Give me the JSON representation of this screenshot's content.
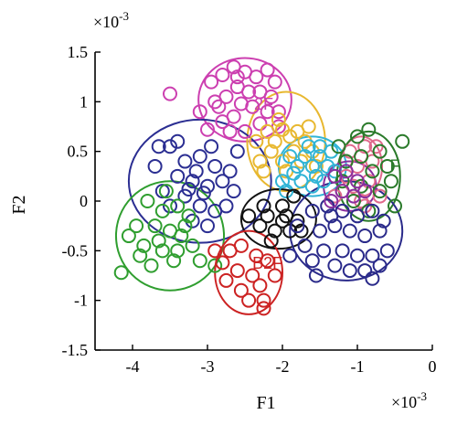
{
  "chart_data": {
    "type": "scatter",
    "xlabel": "F1",
    "ylabel": "F2",
    "x_multiplier_label": "×10",
    "x_multiplier_exp": "-3",
    "y_multiplier_label": "×10",
    "y_multiplier_exp": "-3",
    "xlim": [
      -4.5,
      0
    ],
    "ylim": [
      -1.5,
      1.5
    ],
    "xticks": [
      -4,
      -3,
      -2,
      -1,
      0
    ],
    "xtick_labels": [
      "-4",
      "-3",
      "-2",
      "-1",
      "0"
    ],
    "yticks": [
      1.5,
      1,
      0.5,
      0,
      -0.5,
      -1,
      -1.5
    ],
    "ytick_labels": [
      "1.5",
      "1",
      "0.5",
      "0",
      "-0.5",
      "-1",
      "-1.5"
    ],
    "grid": false,
    "marker": "open-circle",
    "series": [
      {
        "color": "#cc3fb0",
        "center": [
          -2.5,
          1.02
        ],
        "ellipse": {
          "rx": 0.62,
          "ry": 0.42,
          "angle": 0
        },
        "points": [
          [
            -2.95,
            1.2
          ],
          [
            -2.8,
            1.27
          ],
          [
            -2.65,
            1.35
          ],
          [
            -2.5,
            1.3
          ],
          [
            -2.35,
            1.25
          ],
          [
            -2.2,
            1.32
          ],
          [
            -2.1,
            1.2
          ],
          [
            -2.6,
            1.15
          ],
          [
            -2.45,
            1.1
          ],
          [
            -2.3,
            1.1
          ],
          [
            -2.75,
            1.05
          ],
          [
            -2.9,
            1.0
          ],
          [
            -2.55,
            0.98
          ],
          [
            -2.4,
            0.95
          ],
          [
            -2.2,
            0.9
          ],
          [
            -2.65,
            0.85
          ],
          [
            -2.8,
            0.8
          ],
          [
            -2.3,
            0.78
          ],
          [
            -2.05,
            0.75
          ],
          [
            -3.1,
            0.9
          ],
          [
            -3.5,
            1.08
          ],
          [
            -2.5,
            0.7
          ],
          [
            -2.7,
            0.7
          ],
          [
            -2.15,
            1.05
          ],
          [
            -2.05,
            0.9
          ],
          [
            -2.6,
            1.25
          ],
          [
            -2.85,
            0.95
          ],
          [
            -3.0,
            0.72
          ]
        ]
      },
      {
        "color": "#e8b830",
        "center": [
          -1.95,
          0.6
        ],
        "ellipse": {
          "rx": 0.52,
          "ry": 0.5,
          "angle": 0
        },
        "points": [
          [
            -2.2,
            0.7
          ],
          [
            -2.1,
            0.6
          ],
          [
            -2.0,
            0.72
          ],
          [
            -1.9,
            0.65
          ],
          [
            -1.8,
            0.7
          ],
          [
            -1.7,
            0.6
          ],
          [
            -1.85,
            0.5
          ],
          [
            -2.15,
            0.5
          ],
          [
            -2.3,
            0.4
          ],
          [
            -2.0,
            0.4
          ],
          [
            -1.75,
            0.4
          ],
          [
            -1.6,
            0.5
          ],
          [
            -2.35,
            0.6
          ],
          [
            -1.95,
            0.3
          ],
          [
            -1.65,
            0.75
          ],
          [
            -2.25,
            0.3
          ],
          [
            -1.55,
            0.35
          ],
          [
            -2.05,
            0.82
          ]
        ]
      },
      {
        "color": "#30b4d6",
        "center": [
          -1.6,
          0.35
        ],
        "ellipse": {
          "rx": 0.45,
          "ry": 0.3,
          "angle": 0
        },
        "points": [
          [
            -1.9,
            0.45
          ],
          [
            -1.8,
            0.35
          ],
          [
            -1.7,
            0.45
          ],
          [
            -1.6,
            0.35
          ],
          [
            -1.5,
            0.45
          ],
          [
            -1.4,
            0.35
          ],
          [
            -1.55,
            0.25
          ],
          [
            -1.75,
            0.2
          ],
          [
            -1.45,
            0.2
          ],
          [
            -1.65,
            0.55
          ],
          [
            -1.35,
            0.5
          ],
          [
            -1.85,
            0.28
          ],
          [
            -1.6,
            0.15
          ],
          [
            -1.3,
            0.3
          ],
          [
            -2.0,
            0.2
          ],
          [
            -1.95,
            0.1
          ],
          [
            -1.5,
            0.55
          ]
        ]
      },
      {
        "color": "#e06a8c",
        "center": [
          -0.95,
          0.35
        ],
        "ellipse": {
          "rx": 0.28,
          "ry": 0.3,
          "angle": 0
        },
        "points": [
          [
            -1.1,
            0.5
          ],
          [
            -0.9,
            0.55
          ],
          [
            -0.8,
            0.4
          ],
          [
            -1.0,
            0.35
          ],
          [
            -1.15,
            0.25
          ],
          [
            -0.85,
            0.2
          ],
          [
            -0.75,
            0.55
          ],
          [
            -1.05,
            0.15
          ],
          [
            -0.95,
            0.0
          ],
          [
            -1.2,
            0.1
          ],
          [
            -0.7,
            0.05
          ],
          [
            -0.9,
            -0.05
          ],
          [
            -1.3,
            0.05
          ]
        ]
      },
      {
        "color": "#2a7a2a",
        "center": [
          -0.85,
          0.25
        ],
        "ellipse": {
          "rx": 0.42,
          "ry": 0.45,
          "angle": 0
        },
        "points": [
          [
            -1.0,
            0.65
          ],
          [
            -0.85,
            0.72
          ],
          [
            -0.4,
            0.6
          ],
          [
            -0.7,
            0.5
          ],
          [
            -0.95,
            0.45
          ],
          [
            -0.6,
            0.35
          ],
          [
            -1.15,
            0.4
          ],
          [
            -0.8,
            0.3
          ],
          [
            -0.55,
            0.2
          ],
          [
            -1.2,
            0.2
          ],
          [
            -0.95,
            0.15
          ],
          [
            -0.7,
            0.1
          ],
          [
            -0.5,
            -0.05
          ],
          [
            -1.05,
            0.0
          ],
          [
            -0.85,
            -0.1
          ],
          [
            -1.25,
            0.55
          ]
        ]
      },
      {
        "color": "#2b2e92",
        "center": [
          -3.1,
          0.2
        ],
        "ellipse": {
          "rx": 0.95,
          "ry": 0.62,
          "angle": 0
        },
        "points": [
          [
            -3.5,
            0.55
          ],
          [
            -3.3,
            0.4
          ],
          [
            -3.1,
            0.45
          ],
          [
            -2.9,
            0.35
          ],
          [
            -2.7,
            0.3
          ],
          [
            -3.4,
            0.25
          ],
          [
            -3.2,
            0.2
          ],
          [
            -3.0,
            0.15
          ],
          [
            -2.8,
            0.2
          ],
          [
            -3.6,
            0.1
          ],
          [
            -3.3,
            0.05
          ],
          [
            -3.1,
            -0.05
          ],
          [
            -2.9,
            -0.1
          ],
          [
            -3.5,
            -0.05
          ],
          [
            -3.2,
            -0.2
          ],
          [
            -3.0,
            -0.25
          ],
          [
            -2.75,
            -0.05
          ],
          [
            -3.7,
            0.35
          ],
          [
            -2.6,
            0.5
          ],
          [
            -3.15,
            0.3
          ],
          [
            -3.25,
            0.12
          ],
          [
            -3.05,
            0.08
          ],
          [
            -3.4,
            0.6
          ],
          [
            -2.95,
            0.55
          ],
          [
            -3.65,
            0.55
          ],
          [
            -2.65,
            0.1
          ]
        ]
      },
      {
        "color": "#2f9e2f",
        "center": [
          -3.5,
          -0.35
        ],
        "ellipse": {
          "rx": 0.72,
          "ry": 0.55,
          "angle": 0
        },
        "points": [
          [
            -3.8,
            0.0
          ],
          [
            -3.6,
            -0.1
          ],
          [
            -3.4,
            -0.05
          ],
          [
            -3.7,
            -0.25
          ],
          [
            -3.5,
            -0.3
          ],
          [
            -3.3,
            -0.25
          ],
          [
            -3.85,
            -0.45
          ],
          [
            -3.6,
            -0.5
          ],
          [
            -3.4,
            -0.5
          ],
          [
            -3.2,
            -0.45
          ],
          [
            -3.75,
            -0.65
          ],
          [
            -3.45,
            -0.6
          ],
          [
            -3.1,
            -0.6
          ],
          [
            -4.05,
            -0.35
          ],
          [
            -3.95,
            -0.25
          ],
          [
            -3.55,
            0.1
          ],
          [
            -4.15,
            -0.72
          ],
          [
            -2.9,
            -0.65
          ],
          [
            -3.25,
            -0.15
          ],
          [
            -3.65,
            -0.4
          ],
          [
            -3.35,
            -0.35
          ],
          [
            -3.9,
            -0.55
          ]
        ]
      },
      {
        "color": "#111111",
        "center": [
          -2.05,
          -0.18
        ],
        "ellipse": {
          "rx": 0.5,
          "ry": 0.3,
          "angle": 0
        },
        "points": [
          [
            -2.2,
            -0.15
          ],
          [
            -2.0,
            -0.2
          ],
          [
            -1.9,
            -0.3
          ],
          [
            -2.1,
            -0.3
          ],
          [
            -1.8,
            -0.2
          ],
          [
            -2.3,
            -0.25
          ],
          [
            -2.0,
            -0.05
          ],
          [
            -1.95,
            -0.15
          ],
          [
            -1.85,
            0.05
          ],
          [
            -2.15,
            -0.4
          ],
          [
            -1.75,
            -0.3
          ],
          [
            -2.25,
            -0.05
          ],
          [
            -2.45,
            -0.15
          ]
        ]
      },
      {
        "color": "#cc2222",
        "center": [
          -2.45,
          -0.72
        ],
        "ellipse": {
          "rx": 0.45,
          "ry": 0.42,
          "angle": 0
        },
        "points": [
          [
            -2.7,
            -0.5
          ],
          [
            -2.55,
            -0.45
          ],
          [
            -2.35,
            -0.55
          ],
          [
            -2.2,
            -0.6
          ],
          [
            -2.8,
            -0.62
          ],
          [
            -2.6,
            -0.7
          ],
          [
            -2.4,
            -0.75
          ],
          [
            -2.3,
            -0.85
          ],
          [
            -2.55,
            -0.9
          ],
          [
            -2.75,
            -0.8
          ],
          [
            -2.25,
            -1.0
          ],
          [
            -2.25,
            -1.08
          ],
          [
            -2.1,
            -0.75
          ],
          [
            -2.45,
            -1.0
          ],
          [
            -2.9,
            -0.5
          ]
        ]
      },
      {
        "color": "#2a2a8a",
        "center": [
          -1.15,
          -0.3
        ],
        "ellipse": {
          "rx": 0.75,
          "ry": 0.5,
          "angle": 0
        },
        "points": [
          [
            -1.6,
            -0.1
          ],
          [
            -1.4,
            -0.05
          ],
          [
            -1.2,
            -0.1
          ],
          [
            -1.0,
            -0.15
          ],
          [
            -0.8,
            -0.1
          ],
          [
            -1.5,
            -0.3
          ],
          [
            -1.3,
            -0.25
          ],
          [
            -1.1,
            -0.3
          ],
          [
            -0.9,
            -0.35
          ],
          [
            -0.7,
            -0.3
          ],
          [
            -1.7,
            -0.45
          ],
          [
            -1.45,
            -0.5
          ],
          [
            -1.2,
            -0.5
          ],
          [
            -1.0,
            -0.55
          ],
          [
            -0.8,
            -0.55
          ],
          [
            -1.6,
            -0.6
          ],
          [
            -1.3,
            -0.65
          ],
          [
            -1.1,
            -0.7
          ],
          [
            -0.9,
            -0.7
          ],
          [
            -0.7,
            -0.65
          ],
          [
            -1.8,
            -0.25
          ],
          [
            -1.9,
            -0.55
          ],
          [
            -0.6,
            -0.5
          ],
          [
            -1.35,
            -0.15
          ],
          [
            -0.65,
            -0.2
          ],
          [
            -1.55,
            -0.75
          ],
          [
            -0.8,
            -0.78
          ]
        ]
      },
      {
        "color": "#8a2f9e",
        "center": [
          -1.1,
          0.15
        ],
        "ellipse": {
          "rx": 0.35,
          "ry": 0.25,
          "angle": 0
        },
        "points": [
          [
            -1.3,
            0.25
          ],
          [
            -1.15,
            0.3
          ],
          [
            -1.0,
            0.2
          ],
          [
            -1.2,
            0.1
          ],
          [
            -0.9,
            0.1
          ],
          [
            -1.05,
            0.05
          ],
          [
            -1.35,
            0.0
          ]
        ]
      }
    ],
    "annotations": [
      {
        "text": "B2F",
        "x": -2.2,
        "y": -0.68,
        "color": "#cc2222"
      },
      {
        "text": "2F",
        "x": -2.25,
        "y": 0.92,
        "color": "#cc3fb0"
      },
      {
        "text": "F",
        "x": -0.5,
        "y": 0.3,
        "color": "#2a7a2a"
      }
    ]
  }
}
